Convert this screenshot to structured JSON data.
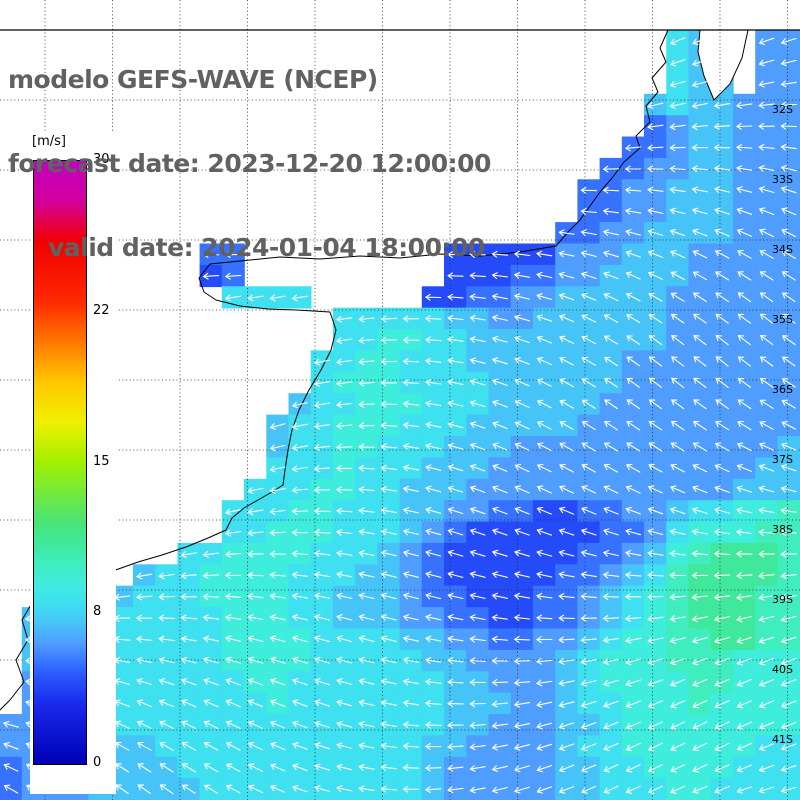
{
  "title": {
    "line1": "modelo GEFS-WAVE (NCEP)",
    "line2": "forecast date: 2023-12-20 12:00:00",
    "line3": "valid date: 2024-01-04 18:00:00"
  },
  "colorbar": {
    "unit_label": "[m/s]",
    "min": 0,
    "max": 30,
    "ticks": [
      30,
      22,
      15,
      8,
      0
    ]
  },
  "map": {
    "lat_labels": [
      "32S",
      "33S",
      "34S",
      "35S",
      "36S",
      "37S",
      "38S",
      "39S",
      "40S",
      "41S"
    ]
  },
  "chart_data": {
    "type": "heatmap",
    "title": "modelo GEFS-WAVE (NCEP)",
    "units": "m/s",
    "scale_min": 0,
    "scale_max": 30,
    "scale_ticks": [
      0,
      8,
      15,
      22,
      30
    ],
    "lat_labels": [
      "32S",
      "33S",
      "34S",
      "35S",
      "36S",
      "37S",
      "38S",
      "39S",
      "40S",
      "41S"
    ],
    "arrows": {
      "color": "#ffffff",
      "general_direction": "westward"
    },
    "color_stops": [
      {
        "v": 0,
        "c": "#0000b4"
      },
      {
        "v": 3,
        "c": "#1a2aee"
      },
      {
        "v": 4.5,
        "c": "#2b5bff"
      },
      {
        "v": 6,
        "c": "#4f9dff"
      },
      {
        "v": 7,
        "c": "#46c4f7"
      },
      {
        "v": 8,
        "c": "#3fe0ef"
      },
      {
        "v": 9,
        "c": "#3feddd"
      },
      {
        "v": 10,
        "c": "#3fedbe"
      },
      {
        "v": 11,
        "c": "#3fe89a"
      },
      {
        "v": 12,
        "c": "#48e478"
      },
      {
        "v": 15,
        "c": "#a0f000"
      },
      {
        "v": 17,
        "c": "#f0f000"
      },
      {
        "v": 19,
        "c": "#ffc800"
      },
      {
        "v": 21,
        "c": "#ff7800"
      },
      {
        "v": 23,
        "c": "#ff2800"
      },
      {
        "v": 26,
        "c": "#f00000"
      },
      {
        "v": 28,
        "c": "#d4009c"
      },
      {
        "v": 30,
        "c": "#c000c0"
      }
    ],
    "value_key": {
      "3": 3,
      "4": 4,
      "5": 5,
      "6": 6,
      "7": 7,
      "8": 8,
      "9": 9,
      "a": 10,
      "b": 11,
      "c": 12
    },
    "grid_cols": 36,
    "grid_rows": 36,
    "rows": [
      "...... ...... ...... ...... ...... 87..66",
      "...... ...... ...... ...... ...... 87..66",
      "...... ...... ...... ...... ...... 877.66",
      "...... ...... ...... ...... .....7 877666",
      "...... ...... ...... ...... .....5 677666",
      "...... ...... ...... ...... ....55 677666",
      "...... ...... ...... ...... ...556 677666",
      "...... ...... ...... ...... ..5566 777666",
      "...... ...... ...... ...... ..5566 777666",
      "...... ...... ...... ...... .55667 777666",
      "...... ...55. ...... ..4444 466677 766666",
      "...... ...45. ...... ..4445 566777 766666",
      "...... ....88 88.... .44556 677777 666666",
      "...... ...... ...888 887766 777777 666666",
      "...... ...... ...889 988777 777777 666666",
      "...... ...... ..8899 888777 777766 666666",
      "...... ...... ..8999 888877 777766 666666",
      "...... ...... .78899 988877 777666 666666",
      "...... ...... 788999 888777 776666 666666",
      "...... ...... 788998 887776 666666 666667",
      "...... ...... 888988 877766 666666 666677",
      "...... .....8 889988 777666 666666 666777",
      "...... ....88 899888 776655 445566 78899a",
      "...... ....88 999888 765444 444556 8999aa",
      "...... ..8899 998887 654444 445567 9abbba",
      "...... 788999 988877 654444 455678 abbbba",
      "....77 888999 988777 655444 556789 abbbaa",
      ".77788 888899 988777 665544 556789 abbbaa",
      ".77888 888899 998888 776655 667899 aabbaa",
      ".78888 888899 998888 877666 678999 aaa999",
      ".67788 888889 988888 887766 678999 9aa999",
      ".66778 888888 988888 887776 678899 9a9999",
      "666778 888888 888888 887766 677899 999999",
      "666777 788888 888888 877666 678899 999988",
      "566777 778888 888888 876666 677889 999888",
      "566677 777888 888888 876666 677888 998888"
    ]
  }
}
